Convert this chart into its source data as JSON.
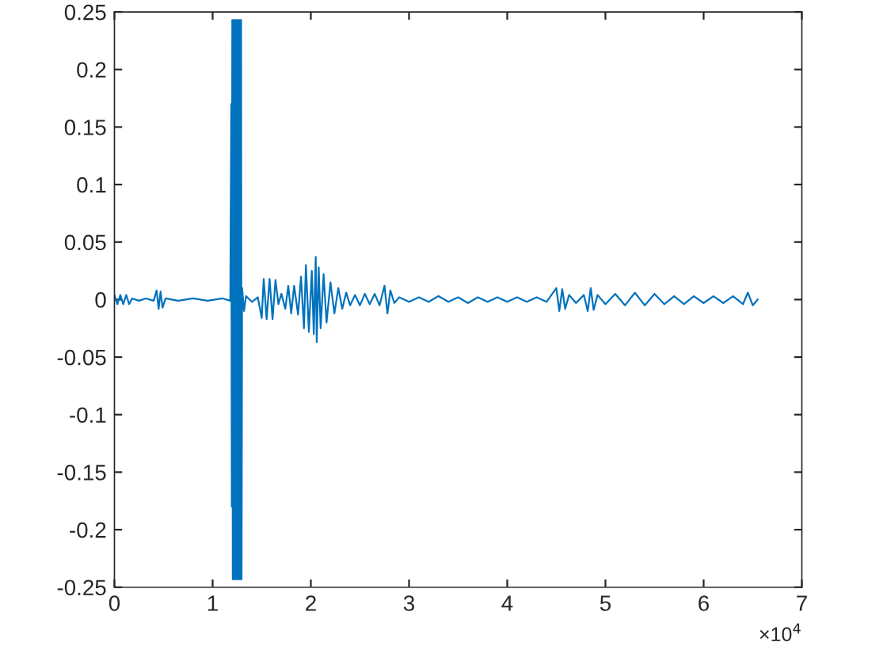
{
  "chart_data": {
    "type": "line",
    "x": [
      0,
      0.03,
      0.06,
      0.09,
      0.12,
      0.15,
      0.18,
      0.25,
      0.32,
      0.4,
      0.43,
      0.45,
      0.47,
      0.49,
      0.52,
      0.65,
      0.8,
      0.95,
      1.1,
      1.18,
      1.19,
      1.195,
      1.2,
      1.205,
      1.21,
      1.215,
      1.22,
      1.225,
      1.23,
      1.235,
      1.24,
      1.245,
      1.25,
      1.255,
      1.26,
      1.265,
      1.27,
      1.275,
      1.28,
      1.285,
      1.29,
      1.295,
      1.3,
      1.32,
      1.34,
      1.4,
      1.46,
      1.5,
      1.52,
      1.55,
      1.58,
      1.61,
      1.64,
      1.67,
      1.7,
      1.74,
      1.77,
      1.8,
      1.83,
      1.87,
      1.9,
      1.93,
      1.95,
      1.98,
      2.01,
      2.03,
      2.05,
      2.06,
      2.08,
      2.1,
      2.13,
      2.16,
      2.2,
      2.24,
      2.28,
      2.32,
      2.36,
      2.4,
      2.45,
      2.5,
      2.55,
      2.6,
      2.65,
      2.7,
      2.75,
      2.78,
      2.81,
      2.85,
      2.9,
      3,
      3.1,
      3.2,
      3.3,
      3.4,
      3.5,
      3.6,
      3.7,
      3.8,
      3.9,
      4,
      4.1,
      4.2,
      4.3,
      4.4,
      4.5,
      4.53,
      4.56,
      4.59,
      4.63,
      4.7,
      4.78,
      4.82,
      4.85,
      4.88,
      4.92,
      5,
      5.1,
      5.2,
      5.3,
      5.4,
      5.5,
      5.6,
      5.7,
      5.8,
      5.9,
      6,
      6.1,
      6.2,
      6.3,
      6.4,
      6.45,
      6.5,
      6.55
    ],
    "series": [
      {
        "color": "#0072bd",
        "values": [
          0.004,
          -0.004,
          0.004,
          -0.004,
          0.004,
          -0.004,
          0.001,
          -0.001,
          0.001,
          -0.001,
          0.008,
          -0.008,
          0.007,
          -0.007,
          0.001,
          -0.001,
          0.001,
          -0.001,
          0.001,
          -0.001,
          0.17,
          -0.18,
          0.243,
          -0.243,
          0.243,
          -0.243,
          0.243,
          -0.243,
          0.243,
          -0.243,
          0.243,
          -0.243,
          0.243,
          -0.243,
          0.243,
          -0.243,
          0.243,
          -0.243,
          0.243,
          -0.243,
          0.243,
          -0.243,
          0.01,
          -0.01,
          0.003,
          -0.002,
          0.002,
          -0.016,
          0.018,
          -0.017,
          0.018,
          -0.017,
          0.017,
          -0.004,
          0.005,
          -0.008,
          0.012,
          -0.012,
          0.012,
          -0.013,
          0.02,
          -0.025,
          0.03,
          -0.028,
          0.025,
          -0.03,
          0.037,
          -0.037,
          0.028,
          -0.025,
          0.022,
          -0.02,
          0.015,
          -0.012,
          0.01,
          -0.008,
          0.006,
          -0.005,
          0.004,
          -0.005,
          0.005,
          -0.004,
          0.005,
          -0.005,
          0.012,
          -0.012,
          0.008,
          -0.003,
          0.002,
          -0.002,
          0.002,
          -0.002,
          0.003,
          -0.002,
          0.002,
          -0.003,
          0.002,
          -0.002,
          0.002,
          -0.002,
          0.002,
          -0.002,
          0.002,
          -0.002,
          0.01,
          -0.01,
          0.009,
          -0.008,
          0.004,
          -0.003,
          0.004,
          -0.01,
          0.01,
          -0.009,
          0.004,
          -0.004,
          0.005,
          -0.005,
          0.006,
          -0.005,
          0.005,
          -0.004,
          0.003,
          -0.004,
          0.003,
          -0.003,
          0.003,
          -0.003,
          0.003,
          -0.004,
          0.006,
          -0.005,
          0
        ]
      }
    ],
    "xlim": [
      0,
      7
    ],
    "xticks": [
      0,
      1,
      2,
      3,
      4,
      5,
      6,
      7
    ],
    "ylim": [
      -0.25,
      0.25
    ],
    "yticks": [
      -0.25,
      -0.2,
      -0.15,
      -0.1,
      -0.05,
      0,
      0.05,
      0.1,
      0.15,
      0.2,
      0.25
    ],
    "annotations": [
      "×10$^{4}$"
    ],
    "grid": false,
    "legend": false,
    "marker": "none",
    "line_style": "solid"
  }
}
